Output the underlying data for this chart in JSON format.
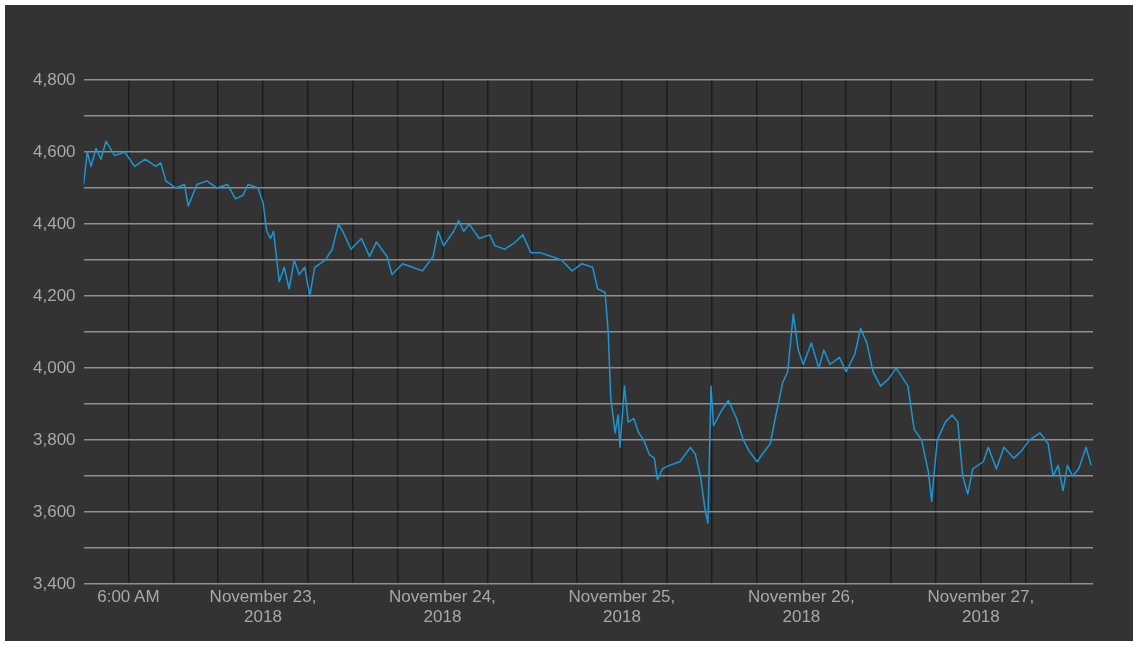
{
  "chart_data": {
    "type": "line",
    "color": "#1b96d3",
    "grid": true,
    "legend": false,
    "marker": "none",
    "line_style": "solid",
    "xlim": [
      "2018-11-22T00:00",
      "2018-11-27T15:00"
    ],
    "xticks": [
      {
        "value": "2018-11-22T06:00",
        "label": "6:00 AM"
      },
      {
        "value": "2018-11-22T12:00",
        "label": null
      },
      {
        "value": "2018-11-22T18:00",
        "label": null
      },
      {
        "value": "2018-11-23T00:00",
        "label": "November 23, 2018"
      },
      {
        "value": "2018-11-23T06:00",
        "label": null
      },
      {
        "value": "2018-11-23T12:00",
        "label": null
      },
      {
        "value": "2018-11-23T18:00",
        "label": null
      },
      {
        "value": "2018-11-24T00:00",
        "label": "November 24, 2018"
      },
      {
        "value": "2018-11-24T06:00",
        "label": null
      },
      {
        "value": "2018-11-24T12:00",
        "label": null
      },
      {
        "value": "2018-11-24T18:00",
        "label": null
      },
      {
        "value": "2018-11-25T00:00",
        "label": "November 25, 2018"
      },
      {
        "value": "2018-11-25T06:00",
        "label": null
      },
      {
        "value": "2018-11-25T12:00",
        "label": null
      },
      {
        "value": "2018-11-25T18:00",
        "label": null
      },
      {
        "value": "2018-11-26T00:00",
        "label": "November 26, 2018"
      },
      {
        "value": "2018-11-26T06:00",
        "label": null
      },
      {
        "value": "2018-11-26T12:00",
        "label": null
      },
      {
        "value": "2018-11-26T18:00",
        "label": null
      },
      {
        "value": "2018-11-27T00:00",
        "label": "November 27, 2018"
      },
      {
        "value": "2018-11-27T06:00",
        "label": null
      },
      {
        "value": "2018-11-27T12:00",
        "label": null
      }
    ],
    "ylim": [
      3400,
      4800
    ],
    "yticks": [
      {
        "value": 3400,
        "label": "3,400"
      },
      {
        "value": 3500,
        "label": null
      },
      {
        "value": 3600,
        "label": "3,600"
      },
      {
        "value": 3700,
        "label": null
      },
      {
        "value": 3800,
        "label": "3,800"
      },
      {
        "value": 3900,
        "label": null
      },
      {
        "value": 4000,
        "label": "4,000"
      },
      {
        "value": 4100,
        "label": null
      },
      {
        "value": 4200,
        "label": "4,200"
      },
      {
        "value": 4300,
        "label": null
      },
      {
        "value": 4400,
        "label": "4,400"
      },
      {
        "value": 4500,
        "label": null
      },
      {
        "value": 4600,
        "label": "4,600"
      },
      {
        "value": 4700,
        "label": null
      },
      {
        "value": 4800,
        "label": "4,800"
      }
    ],
    "x": [
      "2018-11-22T00:00",
      "2018-11-22T00:30",
      "2018-11-22T01:00",
      "2018-11-22T01:40",
      "2018-11-22T02:20",
      "2018-11-22T03:00",
      "2018-11-22T04:10",
      "2018-11-22T05:30",
      "2018-11-22T06:50",
      "2018-11-22T08:15",
      "2018-11-22T09:40",
      "2018-11-22T10:20",
      "2018-11-22T11:00",
      "2018-11-22T12:20",
      "2018-11-22T13:30",
      "2018-11-22T14:00",
      "2018-11-22T15:10",
      "2018-11-22T16:30",
      "2018-11-22T17:50",
      "2018-11-22T19:15",
      "2018-11-22T20:20",
      "2018-11-22T21:20",
      "2018-11-22T22:00",
      "2018-11-22T23:20",
      "2018-11-23T00:00",
      "2018-11-23T00:30",
      "2018-11-23T01:00",
      "2018-11-23T01:25",
      "2018-11-23T02:10",
      "2018-11-23T02:50",
      "2018-11-23T03:30",
      "2018-11-23T04:10",
      "2018-11-23T04:50",
      "2018-11-23T05:35",
      "2018-11-23T06:15",
      "2018-11-23T06:55",
      "2018-11-23T08:20",
      "2018-11-23T09:15",
      "2018-11-23T10:05",
      "2018-11-23T10:40",
      "2018-11-23T11:45",
      "2018-11-23T13:10",
      "2018-11-23T14:15",
      "2018-11-23T15:10",
      "2018-11-23T16:35",
      "2018-11-23T17:15",
      "2018-11-23T18:40",
      "2018-11-23T20:00",
      "2018-11-23T21:20",
      "2018-11-23T22:45",
      "2018-11-23T23:25",
      "2018-11-24T00:10",
      "2018-11-24T01:30",
      "2018-11-24T02:10",
      "2018-11-24T02:50",
      "2018-11-24T03:35",
      "2018-11-24T04:55",
      "2018-11-24T06:20",
      "2018-11-24T07:00",
      "2018-11-24T08:20",
      "2018-11-24T09:45",
      "2018-11-24T10:45",
      "2018-11-24T11:50",
      "2018-11-24T13:10",
      "2018-11-24T14:35",
      "2018-11-24T15:55",
      "2018-11-24T17:20",
      "2018-11-24T18:40",
      "2018-11-24T20:05",
      "2018-11-24T20:45",
      "2018-11-24T21:45",
      "2018-11-24T22:10",
      "2018-11-24T22:30",
      "2018-11-24T23:05",
      "2018-11-24T23:30",
      "2018-11-24T23:45",
      "2018-11-25T00:20",
      "2018-11-25T00:50",
      "2018-11-25T01:35",
      "2018-11-25T02:15",
      "2018-11-25T02:55",
      "2018-11-25T03:40",
      "2018-11-25T04:20",
      "2018-11-25T04:45",
      "2018-11-25T05:25",
      "2018-11-25T06:20",
      "2018-11-25T07:45",
      "2018-11-25T09:10",
      "2018-11-25T09:50",
      "2018-11-25T10:30",
      "2018-11-25T11:10",
      "2018-11-25T11:30",
      "2018-11-25T11:55",
      "2018-11-25T12:15",
      "2018-11-25T13:15",
      "2018-11-25T14:15",
      "2018-11-25T15:20",
      "2018-11-25T16:15",
      "2018-11-25T17:00",
      "2018-11-25T18:05",
      "2018-11-25T18:45",
      "2018-11-25T19:50",
      "2018-11-25T20:30",
      "2018-11-25T21:30",
      "2018-11-25T22:10",
      "2018-11-25T22:55",
      "2018-11-25T23:35",
      "2018-11-26T00:15",
      "2018-11-26T01:20",
      "2018-11-26T02:20",
      "2018-11-26T03:00",
      "2018-11-26T03:50",
      "2018-11-26T05:05",
      "2018-11-26T06:00",
      "2018-11-26T07:10",
      "2018-11-26T07:55",
      "2018-11-26T08:45",
      "2018-11-26T09:35",
      "2018-11-26T10:35",
      "2018-11-26T11:40",
      "2018-11-26T12:40",
      "2018-11-26T13:20",
      "2018-11-26T14:15",
      "2018-11-26T15:05",
      "2018-11-26T16:05",
      "2018-11-26T17:00",
      "2018-11-26T17:25",
      "2018-11-26T18:10",
      "2018-11-26T19:15",
      "2018-11-26T20:10",
      "2018-11-26T20:55",
      "2018-11-26T21:35",
      "2018-11-26T22:15",
      "2018-11-26T22:55",
      "2018-11-27T00:20",
      "2018-11-27T01:00",
      "2018-11-27T02:05",
      "2018-11-27T03:05",
      "2018-11-27T04:25",
      "2018-11-27T05:25",
      "2018-11-27T06:30",
      "2018-11-27T07:55",
      "2018-11-27T09:00",
      "2018-11-27T09:40",
      "2018-11-27T10:20",
      "2018-11-27T11:00",
      "2018-11-27T11:35",
      "2018-11-27T12:15",
      "2018-11-27T13:05",
      "2018-11-27T14:05",
      "2018-11-27T14:45"
    ],
    "values": [
      4510,
      4600,
      4560,
      4610,
      4580,
      4630,
      4590,
      4600,
      4560,
      4580,
      4560,
      4570,
      4520,
      4500,
      4510,
      4450,
      4510,
      4520,
      4500,
      4510,
      4470,
      4480,
      4510,
      4500,
      4460,
      4380,
      4360,
      4380,
      4240,
      4280,
      4220,
      4300,
      4260,
      4280,
      4200,
      4280,
      4300,
      4330,
      4400,
      4380,
      4330,
      4360,
      4310,
      4350,
      4310,
      4260,
      4290,
      4280,
      4270,
      4310,
      4380,
      4340,
      4380,
      4410,
      4380,
      4400,
      4360,
      4370,
      4340,
      4330,
      4350,
      4370,
      4320,
      4320,
      4310,
      4300,
      4270,
      4290,
      4280,
      4220,
      4210,
      4100,
      3920,
      3820,
      3870,
      3780,
      3950,
      3850,
      3860,
      3820,
      3800,
      3760,
      3750,
      3690,
      3720,
      3730,
      3740,
      3780,
      3760,
      3700,
      3600,
      3570,
      3950,
      3840,
      3880,
      3910,
      3860,
      3800,
      3770,
      3740,
      3760,
      3790,
      3860,
      3960,
      3990,
      4150,
      4050,
      4010,
      4070,
      4000,
      4050,
      4010,
      4030,
      3990,
      4040,
      4110,
      4070,
      3990,
      3950,
      3970,
      4000,
      3980,
      3950,
      3830,
      3800,
      3710,
      3630,
      3800,
      3850,
      3870,
      3850,
      3700,
      3650,
      3720,
      3740,
      3780,
      3720,
      3780,
      3750,
      3770,
      3800,
      3820,
      3790,
      3700,
      3730,
      3660,
      3730,
      3700,
      3720,
      3780,
      3730
    ]
  }
}
